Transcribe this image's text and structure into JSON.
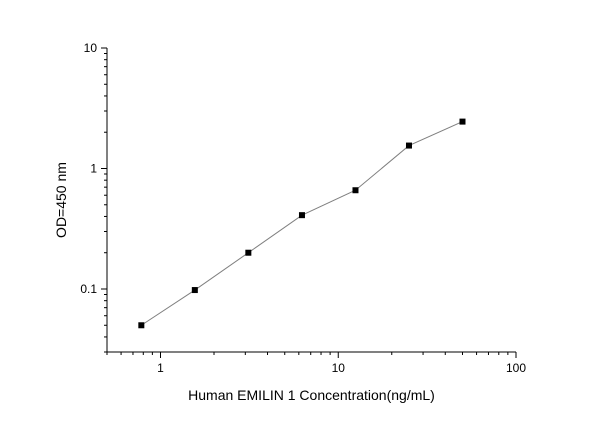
{
  "chart_data": {
    "type": "line",
    "xlabel": "Human EMILIN 1 Concentration(ng/mL)",
    "ylabel": "OD=450 nm",
    "x_scale": "log",
    "y_scale": "log",
    "xlim": [
      0.5,
      100
    ],
    "ylim": [
      0.03,
      10
    ],
    "x_ticks": [
      {
        "value": 1,
        "label": "1"
      },
      {
        "value": 10,
        "label": "10"
      },
      {
        "value": 100,
        "label": "100"
      }
    ],
    "y_ticks": [
      {
        "value": 0.1,
        "label": "0.1"
      },
      {
        "value": 1,
        "label": "1"
      },
      {
        "value": 10,
        "label": "10"
      }
    ],
    "grid": false,
    "legend": "none",
    "colors": {
      "line": "#7f7f7f",
      "marker": "#000000",
      "axis": "#000000"
    },
    "series": [
      {
        "x": [
          0.78,
          1.56,
          3.12,
          6.25,
          12.5,
          25,
          50
        ],
        "y": [
          0.05,
          0.098,
          0.2,
          0.41,
          0.66,
          1.55,
          2.45
        ]
      }
    ]
  }
}
